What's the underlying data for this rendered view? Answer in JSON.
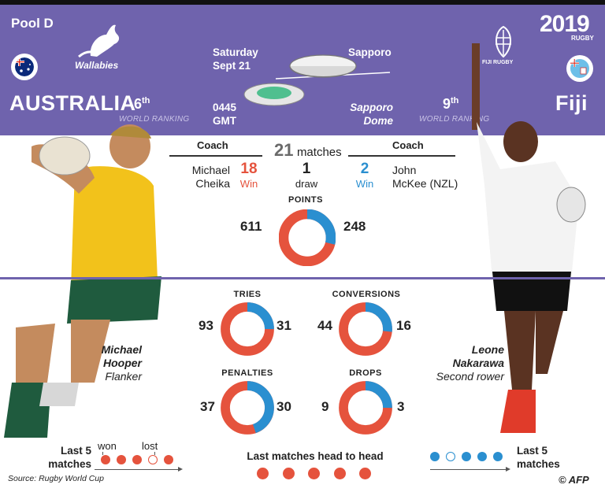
{
  "pool": "Pool D",
  "event_logo": {
    "year": "2019",
    "label": "RUGBY"
  },
  "match": {
    "day": "Saturday",
    "date": "Sept 21",
    "time": "0445",
    "timezone": "GMT",
    "city": "Sapporo",
    "stadium_line1": "Sapporo",
    "stadium_line2": "Dome"
  },
  "home": {
    "name": "AUSTRALIA",
    "logo_text": "Wallabies",
    "ranking": "6",
    "ranking_suffix": "th",
    "ranking_label": "WORLD RANKING",
    "coach_line1": "Michael",
    "coach_line2": "Cheika",
    "wins": "18",
    "win_label": "Win",
    "player_first": "Michael",
    "player_last": "Hooper",
    "player_role": "Flanker"
  },
  "away": {
    "name": "Fiji",
    "logo_text": "FIJI RUGBY",
    "ranking": "9",
    "ranking_suffix": "th",
    "ranking_label": "WORLD RANKING",
    "coach_line1": "John",
    "coach_line2": "McKee (NZL)",
    "wins": "2",
    "win_label": "Win",
    "player_first": "Leone",
    "player_last": "Nakarawa",
    "player_role": "Second rower"
  },
  "coach_label": "Coach",
  "head_to_head": {
    "matches": "21",
    "matches_label": "matches",
    "draws": "1",
    "draw_label": "draw"
  },
  "colors": {
    "header": "#6f63ad",
    "home": "#e5533d",
    "away": "#2a8fd0"
  },
  "stats": [
    {
      "key": "points",
      "label": "Points",
      "home": 611,
      "away": 248
    },
    {
      "key": "tries",
      "label": "Tries",
      "home": 93,
      "away": 31
    },
    {
      "key": "conversions",
      "label": "Conversions",
      "home": 44,
      "away": 16
    },
    {
      "key": "penalties",
      "label": "Penalties",
      "home": 37,
      "away": 30
    },
    {
      "key": "drops",
      "label": "Drops",
      "home": 9,
      "away": 3
    }
  ],
  "last5": {
    "label_line1": "Last 5",
    "label_line2": "matches",
    "won_label": "won",
    "lost_label": "lost",
    "home": [
      "won",
      "won",
      "won",
      "lost",
      "won"
    ],
    "away": [
      "won",
      "lost",
      "won",
      "won",
      "won"
    ]
  },
  "h2h_last": {
    "label": "Last matches head to head",
    "results": [
      "home",
      "home",
      "home",
      "home",
      "home"
    ]
  },
  "source": "Source: Rugby World Cup",
  "credit": "© AFP"
}
